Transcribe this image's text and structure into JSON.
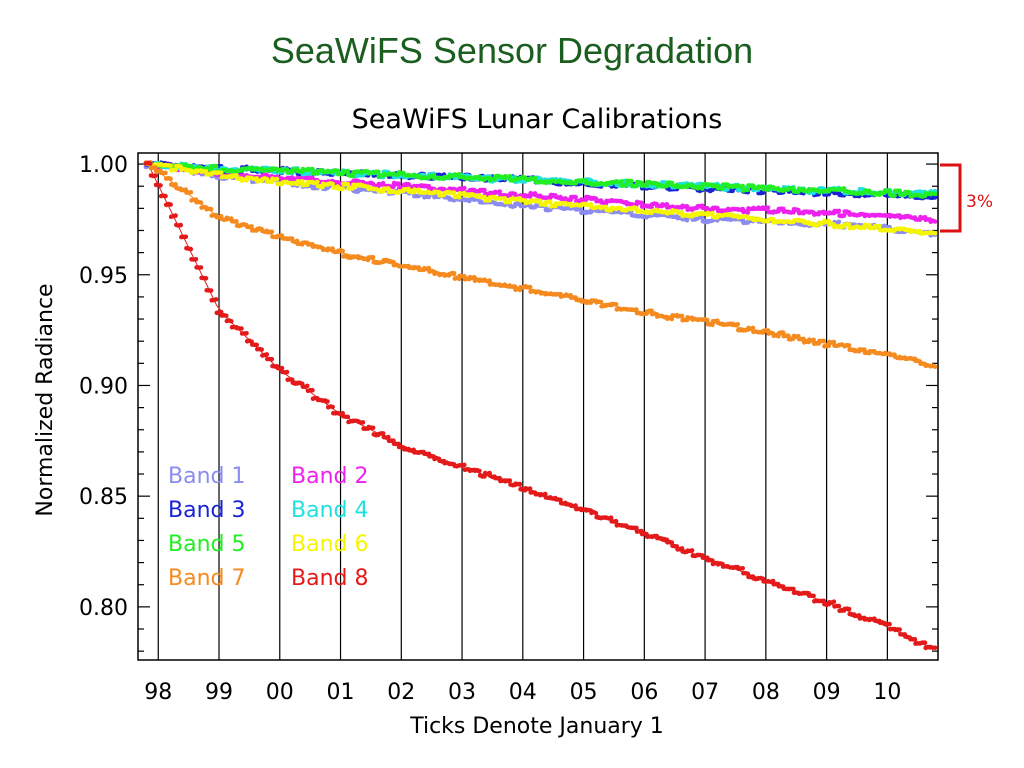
{
  "slide": {
    "title": "SeaWiFS Sensor Degradation"
  },
  "colors": {
    "band1": "#8c8cf0",
    "band2": "#ee22ee",
    "band3": "#1a24d6",
    "band4": "#22e0e0",
    "band5": "#22ee22",
    "band6": "#f5f500",
    "band7": "#f58a1f",
    "band8": "#e41a1a",
    "bracket": "#dd1111"
  },
  "annotation": {
    "label": "3%"
  },
  "chart_data": {
    "type": "scatter",
    "title": "SeaWiFS Lunar Calibrations",
    "xlabel": "Ticks Denote January 1",
    "ylabel": "Normalized Radiance",
    "xlim": [
      "1997-09",
      "2010-11"
    ],
    "ylim": [
      0.776,
      1.005
    ],
    "categories": [
      "98",
      "99",
      "00",
      "01",
      "02",
      "03",
      "04",
      "05",
      "06",
      "07",
      "08",
      "09",
      "10"
    ],
    "yticks": [
      {
        "value": 1.0,
        "label": "1.00"
      },
      {
        "value": 0.95,
        "label": "0.95"
      },
      {
        "value": 0.9,
        "label": "0.90"
      },
      {
        "value": 0.85,
        "label": "0.85"
      },
      {
        "value": 0.8,
        "label": "0.80"
      }
    ],
    "x": [
      "1997-11",
      "1999-01",
      "2000-01",
      "2001-01",
      "2002-01",
      "2003-01",
      "2004-01",
      "2005-01",
      "2006-01",
      "2007-01",
      "2008-01",
      "2009-01",
      "2010-01",
      "2010-10"
    ],
    "series": [
      {
        "name": "Band 1",
        "values": [
          1.0,
          0.994,
          0.992,
          0.989,
          0.987,
          0.984,
          0.981,
          0.979,
          0.977,
          0.975,
          0.974,
          0.973,
          0.971,
          0.969
        ]
      },
      {
        "name": "Band 2",
        "values": [
          1.0,
          0.996,
          0.994,
          0.992,
          0.99,
          0.988,
          0.986,
          0.984,
          0.982,
          0.98,
          0.979,
          0.978,
          0.976,
          0.975
        ]
      },
      {
        "name": "Band 3",
        "values": [
          1.0,
          0.998,
          0.997,
          0.996,
          0.995,
          0.994,
          0.993,
          0.991,
          0.99,
          0.989,
          0.988,
          0.987,
          0.986,
          0.985
        ]
      },
      {
        "name": "Band 4",
        "values": [
          1.0,
          0.998,
          0.997,
          0.996,
          0.995,
          0.994,
          0.993,
          0.992,
          0.991,
          0.99,
          0.989,
          0.988,
          0.987,
          0.987
        ]
      },
      {
        "name": "Band 5",
        "values": [
          1.0,
          0.998,
          0.997,
          0.996,
          0.995,
          0.994,
          0.993,
          0.992,
          0.991,
          0.99,
          0.989,
          0.988,
          0.987,
          0.986
        ]
      },
      {
        "name": "Band 6",
        "values": [
          1.0,
          0.995,
          0.992,
          0.99,
          0.988,
          0.986,
          0.983,
          0.981,
          0.979,
          0.977,
          0.975,
          0.973,
          0.971,
          0.969
        ]
      },
      {
        "name": "Band 7",
        "values": [
          1.0,
          0.976,
          0.967,
          0.96,
          0.954,
          0.949,
          0.944,
          0.939,
          0.933,
          0.929,
          0.924,
          0.919,
          0.914,
          0.909
        ]
      },
      {
        "name": "Band 8",
        "values": [
          1.0,
          0.934,
          0.907,
          0.887,
          0.873,
          0.863,
          0.854,
          0.844,
          0.833,
          0.822,
          0.812,
          0.802,
          0.791,
          0.781
        ]
      }
    ],
    "legend": {
      "placement": "lower-left",
      "entries": [
        [
          "Band 1",
          "Band 2"
        ],
        [
          "Band 3",
          "Band 4"
        ],
        [
          "Band 5",
          "Band 6"
        ],
        [
          "Band 7",
          "Band 8"
        ]
      ]
    },
    "grid": "vertical lines at January 1 of each year"
  }
}
